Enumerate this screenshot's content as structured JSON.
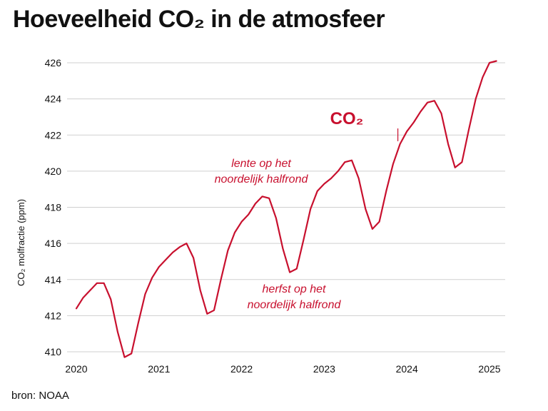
{
  "title": "Hoeveelheid CO₂ in de atmosfeer",
  "source": "bron: NOAA",
  "colors": {
    "series": "#c8102e",
    "grid": "#cfcfcf",
    "text": "#111111"
  },
  "chart_data": {
    "type": "line",
    "title": "Hoeveelheid CO₂ in de atmosfeer",
    "xlabel": "",
    "ylabel": "CO₂ molfractie (ppm)",
    "ylim": [
      410,
      426
    ],
    "xlim": [
      2020,
      2025.2
    ],
    "grid": true,
    "y_ticks": [
      410,
      412,
      414,
      416,
      418,
      420,
      422,
      424,
      426
    ],
    "x_ticks": [
      2020,
      2021,
      2022,
      2023,
      2024,
      2025
    ],
    "series": [
      {
        "name": "CO₂",
        "x": [
          2020.0,
          2020.083,
          2020.167,
          2020.25,
          2020.333,
          2020.417,
          2020.5,
          2020.583,
          2020.667,
          2020.75,
          2020.833,
          2020.917,
          2021.0,
          2021.083,
          2021.167,
          2021.25,
          2021.333,
          2021.417,
          2021.5,
          2021.583,
          2021.667,
          2021.75,
          2021.833,
          2021.917,
          2022.0,
          2022.083,
          2022.167,
          2022.25,
          2022.333,
          2022.417,
          2022.5,
          2022.583,
          2022.667,
          2022.75,
          2022.833,
          2022.917,
          2023.0,
          2023.083,
          2023.167,
          2023.25,
          2023.333,
          2023.417,
          2023.5,
          2023.583,
          2023.667,
          2023.75,
          2023.833,
          2023.917,
          2024.0,
          2024.083,
          2024.167,
          2024.25,
          2024.333,
          2024.417,
          2024.5,
          2024.583,
          2024.667,
          2024.75,
          2024.833,
          2024.917,
          2025.0,
          2025.083
        ],
        "values": [
          412.4,
          413.0,
          413.4,
          413.8,
          413.8,
          412.9,
          411.1,
          409.7,
          409.9,
          411.6,
          413.2,
          414.1,
          414.7,
          415.1,
          415.5,
          415.8,
          416.0,
          415.2,
          413.4,
          412.1,
          412.3,
          414.0,
          415.6,
          416.6,
          417.2,
          417.6,
          418.2,
          418.6,
          418.5,
          417.4,
          415.7,
          414.4,
          414.6,
          416.2,
          417.9,
          418.9,
          419.3,
          419.6,
          420.0,
          420.5,
          420.6,
          419.6,
          417.9,
          416.8,
          417.2,
          418.9,
          420.4,
          421.5,
          422.2,
          422.7,
          423.3,
          423.8,
          423.9,
          423.2,
          421.5,
          420.2,
          420.5,
          422.3,
          424.0,
          425.2,
          426.0,
          426.1
        ]
      }
    ],
    "series_label": "CO₂",
    "annotations": {
      "spring": [
        "lente op het",
        "noordelijk halfrond"
      ],
      "autumn": [
        "herfst op het",
        "noordelijk halfrond"
      ]
    }
  }
}
